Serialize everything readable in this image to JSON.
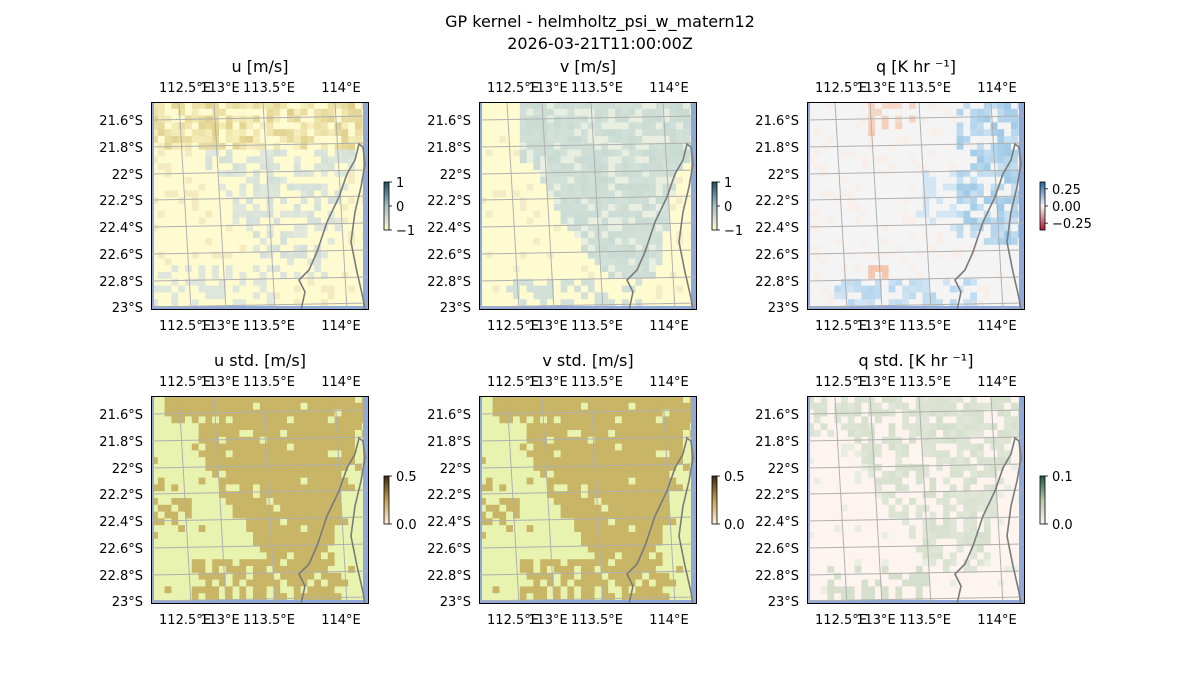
{
  "figure": {
    "title_line1": "GP kernel - helmholtz_psi_w_matern12",
    "title_line2": "2026-03-21T11:00:00Z"
  },
  "axes_labels": {
    "lon_ticks": [
      "112.5°E",
      "113°E",
      "113.5°E",
      "114°E"
    ],
    "lat_ticks": [
      "21.6°S",
      "21.8°S",
      "22°S",
      "22.2°S",
      "22.4°S",
      "22.6°S",
      "22.8°S",
      "23°S"
    ]
  },
  "chart_data": [
    {
      "type": "heatmap",
      "title": "u [m/s]",
      "colormap": "diverging",
      "colorbar_ticks": [
        "1",
        "0",
        "−1"
      ],
      "colorbar_range": [
        -1,
        1
      ]
    },
    {
      "type": "heatmap",
      "title": "v [m/s]",
      "colormap": "diverging",
      "colorbar_ticks": [
        "1",
        "0",
        "−1"
      ],
      "colorbar_range": [
        -1,
        1
      ]
    },
    {
      "type": "heatmap",
      "title": "q [K hr ⁻¹]",
      "colormap": "red-blue",
      "colorbar_ticks": [
        "0.25",
        "0.00",
        "−0.25"
      ],
      "colorbar_range": [
        -0.35,
        0.35
      ]
    },
    {
      "type": "heatmap",
      "title": "u std. [m/s]",
      "colormap": "sequential",
      "colorbar_ticks": [
        "0.5",
        "0.0"
      ],
      "colorbar_range": [
        0,
        0.5
      ]
    },
    {
      "type": "heatmap",
      "title": "v std. [m/s]",
      "colormap": "sequential",
      "colorbar_ticks": [
        "0.5",
        "0.0"
      ],
      "colorbar_range": [
        0,
        0.5
      ]
    },
    {
      "type": "heatmap",
      "title": "q std. [K hr ⁻¹]",
      "colormap": "sequential",
      "colorbar_ticks": [
        "0.1",
        "0.0"
      ],
      "colorbar_range": [
        0,
        0.1
      ]
    }
  ]
}
